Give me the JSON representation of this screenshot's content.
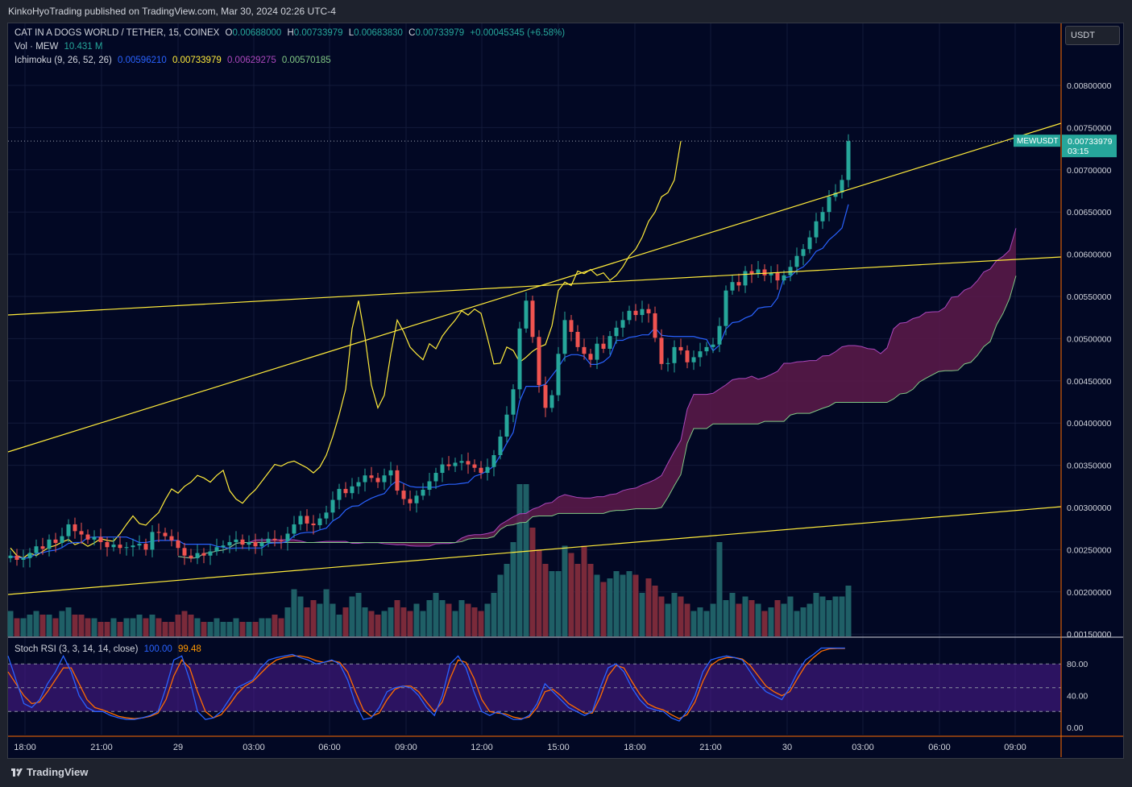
{
  "header": {
    "publish_text": "KinkoHyoTrading published on TradingView.com, Mar 30, 2024 02:26 UTC-4"
  },
  "legend": {
    "symbol": "CAT IN A DOGS WORLD / TETHER, 15, COINEX",
    "o_label": "O",
    "o_value": "0.00688000",
    "h_label": "H",
    "h_value": "0.00733979",
    "l_label": "L",
    "l_value": "0.00683830",
    "c_label": "C",
    "c_value": "0.00733979",
    "change": "+0.00045345 (+6.58%)",
    "vol_label": "Vol · MEW",
    "vol_value": "10.431 M",
    "ichimoku_label": "Ichimoku (9, 26, 52, 26)",
    "ichimoku_values": [
      "0.00596210",
      "0.00733979",
      "0.00629275",
      "0.00570185"
    ],
    "stoch_label": "Stoch RSI (3, 3, 14, 14, close)",
    "stoch_k": "100.00",
    "stoch_d": "99.48"
  },
  "currency_button": "USDT",
  "price_tag": {
    "symbol": "MEWUSDT",
    "price": "0.00733979",
    "countdown": "03:15"
  },
  "footer": {
    "brand": "TradingView"
  },
  "colors": {
    "up": "#26a69a",
    "down": "#ef5350",
    "conversion": "#2962ff",
    "base": "#ffeb3b",
    "span_a": "#ab47bc",
    "span_b": "#81c784",
    "cloud": "#5d1a4a",
    "trendline": "#ffeb3b",
    "stoch_k": "#2962ff",
    "stoch_d": "#ff6d00",
    "stoch_band": "#4a1a8a"
  },
  "chart_data": {
    "type": "candlestick",
    "price_axis_ticks": [
      "0.00800000",
      "0.00750000",
      "0.00700000",
      "0.00650000",
      "0.00600000",
      "0.00550000",
      "0.00500000",
      "0.00450000",
      "0.00400000",
      "0.00350000",
      "0.00300000",
      "0.00250000",
      "0.00200000",
      "0.00150000"
    ],
    "price_axis_values": [
      0.008,
      0.0075,
      0.007,
      0.0065,
      0.006,
      0.0055,
      0.005,
      0.0045,
      0.004,
      0.0035,
      0.003,
      0.0025,
      0.002,
      0.0015
    ],
    "price_range": [
      0.0015,
      0.0082
    ],
    "time_axis_ticks": [
      "18:00",
      "21:00",
      "29",
      "03:00",
      "06:00",
      "09:00",
      "12:00",
      "15:00",
      "18:00",
      "21:00",
      "30",
      "03:00",
      "06:00",
      "09:00"
    ],
    "stoch_axis_ticks": [
      "80.00",
      "40.00",
      "0.00"
    ],
    "stoch_axis_values": [
      80,
      40,
      0
    ],
    "stoch_band": [
      20,
      80
    ],
    "close": [
      0.00243,
      0.00238,
      0.0024,
      0.00246,
      0.00254,
      0.00251,
      0.00262,
      0.00258,
      0.00266,
      0.0028,
      0.00272,
      0.00268,
      0.00262,
      0.00265,
      0.00259,
      0.00253,
      0.00256,
      0.00252,
      0.00253,
      0.00255,
      0.00257,
      0.0025,
      0.00271,
      0.0027,
      0.00266,
      0.00261,
      0.00252,
      0.00243,
      0.0024,
      0.00246,
      0.00243,
      0.00248,
      0.00253,
      0.00255,
      0.00259,
      0.00262,
      0.00256,
      0.00259,
      0.00254,
      0.00258,
      0.00263,
      0.00261,
      0.0026,
      0.00269,
      0.0028,
      0.0029,
      0.00281,
      0.00279,
      0.00287,
      0.00294,
      0.00309,
      0.00322,
      0.00317,
      0.00325,
      0.0033,
      0.00338,
      0.00335,
      0.0033,
      0.00338,
      0.00344,
      0.0032,
      0.0031,
      0.00305,
      0.00314,
      0.00321,
      0.00331,
      0.00341,
      0.00351,
      0.00349,
      0.00353,
      0.00355,
      0.00351,
      0.00347,
      0.00341,
      0.00348,
      0.00362,
      0.00384,
      0.0041,
      0.0044,
      0.00512,
      0.00545,
      0.00502,
      0.00445,
      0.00418,
      0.00433,
      0.00482,
      0.00522,
      0.00508,
      0.0049,
      0.00482,
      0.00475,
      0.00494,
      0.00488,
      0.00503,
      0.00513,
      0.00522,
      0.00533,
      0.00528,
      0.00535,
      0.0053,
      0.00501,
      0.0047,
      0.00471,
      0.0049,
      0.00486,
      0.00472,
      0.00478,
      0.00485,
      0.0049,
      0.00493,
      0.00515,
      0.00557,
      0.00567,
      0.00563,
      0.0058,
      0.00577,
      0.00582,
      0.00575,
      0.00578,
      0.00569,
      0.00575,
      0.00585,
      0.00598,
      0.00606,
      0.0062,
      0.00639,
      0.0065,
      0.00668,
      0.00673,
      0.00688,
      0.00734
    ],
    "volume": [
      0.35,
      0.25,
      0.25,
      0.3,
      0.35,
      0.3,
      0.3,
      0.25,
      0.35,
      0.4,
      0.3,
      0.3,
      0.25,
      0.25,
      0.2,
      0.2,
      0.25,
      0.2,
      0.25,
      0.25,
      0.3,
      0.25,
      0.3,
      0.25,
      0.2,
      0.2,
      0.3,
      0.35,
      0.3,
      0.25,
      0.2,
      0.2,
      0.25,
      0.2,
      0.2,
      0.25,
      0.2,
      0.2,
      0.2,
      0.25,
      0.25,
      0.3,
      0.25,
      0.4,
      0.65,
      0.55,
      0.4,
      0.5,
      0.45,
      0.65,
      0.45,
      0.3,
      0.4,
      0.55,
      0.6,
      0.4,
      0.35,
      0.3,
      0.35,
      0.4,
      0.5,
      0.4,
      0.35,
      0.45,
      0.35,
      0.5,
      0.6,
      0.5,
      0.45,
      0.35,
      0.5,
      0.45,
      0.4,
      0.35,
      0.45,
      0.6,
      0.85,
      1.0,
      1.3,
      2.1,
      2.1,
      1.5,
      1.2,
      1.0,
      0.9,
      0.9,
      1.25,
      1.15,
      1.0,
      1.25,
      1.0,
      0.85,
      0.75,
      0.8,
      0.9,
      0.85,
      0.9,
      0.85,
      0.6,
      0.8,
      0.7,
      0.55,
      0.45,
      0.6,
      0.55,
      0.45,
      0.35,
      0.4,
      0.35,
      0.45,
      1.3,
      0.5,
      0.6,
      0.45,
      0.55,
      0.5,
      0.45,
      0.35,
      0.4,
      0.5,
      0.45,
      0.55,
      0.35,
      0.4,
      0.45,
      0.6,
      0.55,
      0.5,
      0.55,
      0.55,
      0.7
    ],
    "stoch_k": [
      90,
      60,
      30,
      25,
      35,
      55,
      70,
      90,
      70,
      40,
      25,
      20,
      20,
      15,
      12,
      10,
      10,
      12,
      15,
      20,
      50,
      85,
      90,
      60,
      20,
      10,
      12,
      20,
      35,
      50,
      55,
      60,
      75,
      85,
      88,
      90,
      92,
      88,
      85,
      80,
      82,
      85,
      80,
      60,
      30,
      10,
      12,
      25,
      45,
      50,
      52,
      50,
      40,
      25,
      15,
      40,
      80,
      90,
      75,
      45,
      20,
      15,
      20,
      15,
      10,
      10,
      15,
      30,
      55,
      45,
      35,
      25,
      20,
      15,
      20,
      50,
      75,
      80,
      70,
      50,
      35,
      25,
      22,
      20,
      12,
      8,
      20,
      40,
      70,
      85,
      88,
      90,
      88,
      85,
      70,
      55,
      45,
      40,
      35,
      50,
      70,
      85,
      92,
      100,
      100,
      100,
      100
    ],
    "stoch_d": [
      70,
      55,
      40,
      30,
      32,
      45,
      60,
      75,
      75,
      55,
      35,
      25,
      22,
      18,
      14,
      12,
      11,
      12,
      14,
      18,
      35,
      65,
      85,
      75,
      45,
      20,
      12,
      16,
      28,
      42,
      52,
      58,
      68,
      78,
      85,
      88,
      90,
      90,
      88,
      84,
      82,
      84,
      82,
      70,
      45,
      22,
      14,
      18,
      35,
      48,
      52,
      52,
      45,
      32,
      20,
      32,
      62,
      85,
      82,
      62,
      35,
      20,
      18,
      17,
      13,
      11,
      13,
      25,
      45,
      48,
      40,
      30,
      24,
      18,
      18,
      38,
      65,
      78,
      75,
      58,
      42,
      30,
      25,
      22,
      16,
      11,
      16,
      32,
      58,
      78,
      85,
      88,
      88,
      86,
      78,
      65,
      52,
      45,
      40,
      45,
      62,
      78,
      88,
      96,
      99,
      99.5,
      99.5
    ]
  }
}
